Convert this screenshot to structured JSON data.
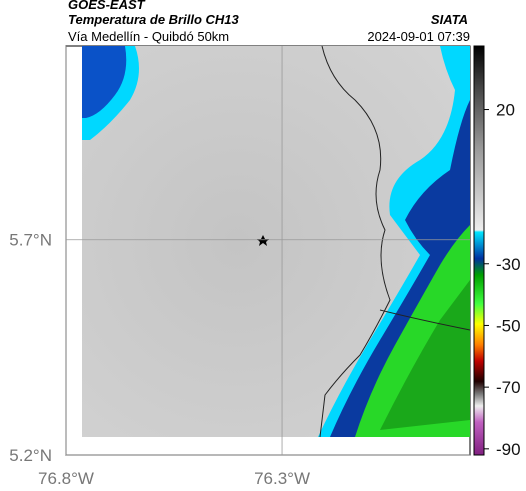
{
  "header": {
    "title": "GOES-EAST",
    "subtitle": "Temperatura de Brillo CH13",
    "region": "Vía Medellín - Quibdó 50km",
    "source": "SIATA",
    "datetime": "2024-09-01 07:39"
  },
  "map": {
    "ylim": [
      5.2,
      6.15
    ],
    "xlim": [
      -76.8,
      -75.865
    ],
    "yticks": [
      {
        "value": 5.7,
        "label": "5.7°N"
      },
      {
        "value": 5.2,
        "label": "5.2°N"
      }
    ],
    "xticks": [
      {
        "value": -76.8,
        "label": "76.8°W"
      },
      {
        "value": -76.3,
        "label": "76.3°W"
      }
    ]
  },
  "colorbar": {
    "lim": [
      40.6,
      -92
    ],
    "ticks": [
      20,
      -30,
      -50,
      -70,
      -90
    ]
  }
}
